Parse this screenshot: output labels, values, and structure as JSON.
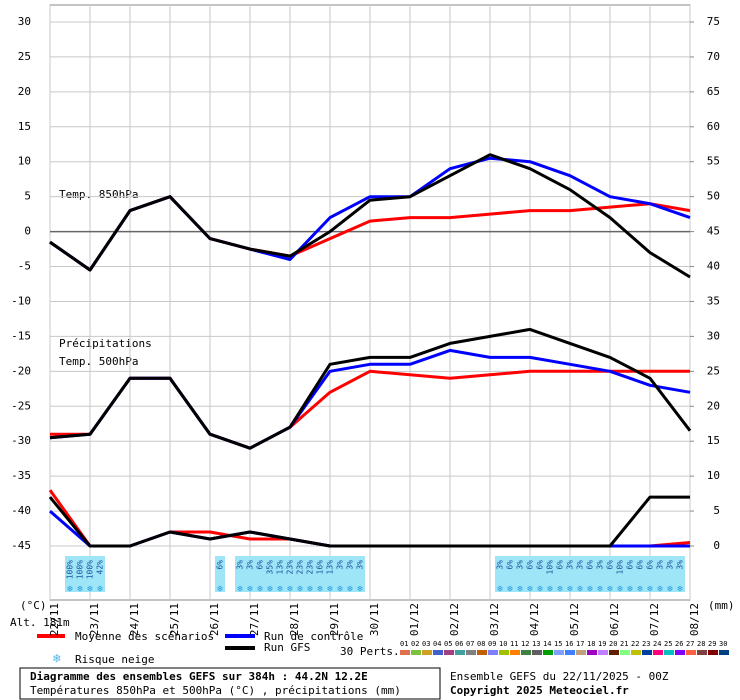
{
  "chart_data": {
    "type": "line",
    "annotations": [
      "Temp. 850hPa",
      "Précipitations",
      "Temp. 500hPa"
    ],
    "ylabel": "(°C)",
    "y2label": "(mm)",
    "altitude": "Alt. 181m",
    "x": [
      0,
      24,
      48,
      72,
      96,
      120,
      144,
      168,
      192,
      216,
      240,
      264,
      288,
      312,
      336,
      360,
      384
    ],
    "xlim": [
      0,
      384
    ],
    "xticks": [
      {
        "value": 0,
        "label": "22/11"
      },
      {
        "value": 24,
        "label": "23/11"
      },
      {
        "value": 48,
        "label": "24/11"
      },
      {
        "value": 72,
        "label": "25/11"
      },
      {
        "value": 96,
        "label": "26/11"
      },
      {
        "value": 120,
        "label": "27/11"
      },
      {
        "value": 144,
        "label": "28/11"
      },
      {
        "value": 168,
        "label": "29/11"
      },
      {
        "value": 192,
        "label": "30/11"
      },
      {
        "value": 216,
        "label": "01/12"
      },
      {
        "value": 240,
        "label": "02/12"
      },
      {
        "value": 264,
        "label": "03/12"
      },
      {
        "value": 288,
        "label": "04/12"
      },
      {
        "value": 312,
        "label": "05/12"
      },
      {
        "value": 336,
        "label": "06/12"
      },
      {
        "value": 360,
        "label": "07/12"
      },
      {
        "value": 384,
        "label": "08/12"
      }
    ],
    "ylim": [
      -45,
      30
    ],
    "yticks": [
      30,
      25,
      20,
      15,
      10,
      5,
      0,
      -5,
      -10,
      -15,
      -20,
      -25,
      -30,
      -35,
      -40,
      -45
    ],
    "y2lim": [
      0,
      75
    ],
    "y2ticks": [
      75,
      70,
      65,
      60,
      55,
      50,
      45,
      40,
      35,
      30,
      25,
      20,
      15,
      10,
      5,
      0
    ],
    "grid": true,
    "series": [
      {
        "name": "Moyenne des scénarios",
        "color": "#ff0000",
        "values": [
          -1.5,
          -5.5,
          3,
          5,
          -1,
          -2.5,
          -3.5,
          -1,
          1.5,
          2,
          2,
          2.5,
          3,
          3,
          3.5,
          4,
          3
        ]
      },
      {
        "name": "Run de contrôle",
        "color": "#0000ff",
        "values": [
          -1.5,
          -5.5,
          3,
          5,
          -1,
          -2.5,
          -4,
          2,
          5,
          5,
          9,
          10.5,
          10,
          8,
          5,
          4,
          2
        ]
      },
      {
        "name": "Run GFS",
        "color": "#000000",
        "values": [
          -1.5,
          -5.5,
          3,
          5,
          -1,
          -2.5,
          -3.5,
          0,
          4.5,
          5,
          8,
          11,
          9,
          6,
          2,
          -3,
          -6.5
        ]
      },
      {
        "name": "Moyenne des scénarios",
        "color": "#ff0000",
        "values": [
          -29,
          -29,
          -21,
          -21,
          -29,
          -31,
          -28,
          -23,
          -20,
          -20.5,
          -21,
          -20.5,
          -20,
          -20,
          -20,
          -20,
          -20
        ]
      },
      {
        "name": "Run de contrôle",
        "color": "#0000ff",
        "values": [
          -29.5,
          -29,
          -21,
          -21,
          -29,
          -31,
          -28,
          -20,
          -19,
          -19,
          -17,
          -18,
          -18,
          -19,
          -20,
          -22,
          -23
        ]
      },
      {
        "name": "Run GFS",
        "color": "#000000",
        "values": [
          -29.5,
          -29,
          -21,
          -21,
          -29,
          -31,
          -28,
          -19,
          -18,
          -18,
          -16,
          -15,
          -14,
          -16,
          -18,
          -21,
          -28.5
        ]
      },
      {
        "name": "Moyenne des scénarios",
        "color": "#ff0000",
        "axis": "y2",
        "values": [
          8,
          0,
          0,
          2,
          2,
          1,
          1,
          0,
          0,
          0,
          0,
          0,
          0,
          0,
          0,
          0,
          0.5
        ]
      },
      {
        "name": "Run de contrôle",
        "color": "#0000ff",
        "axis": "y2",
        "values": [
          5,
          0,
          0,
          2,
          1,
          2,
          1,
          0,
          0,
          0,
          0,
          0,
          0,
          0,
          0,
          0,
          0
        ]
      },
      {
        "name": "Run GFS",
        "color": "#000000",
        "axis": "y2",
        "values": [
          7,
          0,
          0,
          2,
          1,
          2,
          1,
          0,
          0,
          0,
          0,
          0,
          0,
          0,
          0,
          7,
          7
        ]
      }
    ],
    "snow": {
      "label": "Risque neige",
      "color": "#9ee6f7",
      "x": [
        12,
        18,
        24,
        30,
        102,
        114,
        120,
        126,
        132,
        138,
        144,
        150,
        156,
        162,
        168,
        174,
        180,
        186,
        270,
        276,
        282,
        288,
        294,
        300,
        306,
        312,
        318,
        324,
        330,
        336,
        342,
        348,
        354,
        360,
        366,
        372,
        378
      ],
      "values": [
        100,
        100,
        100,
        42,
        6,
        3,
        3,
        6,
        35,
        13,
        23,
        23,
        23,
        16,
        13,
        3,
        3,
        3,
        3,
        6,
        3,
        6,
        6,
        10,
        6,
        3,
        3,
        6,
        3,
        6,
        10,
        6,
        6,
        6,
        3,
        3,
        3
      ],
      "value_labels": [
        "100%",
        "100%",
        "100%",
        "42%",
        "6%",
        "3%",
        "3%",
        "6%",
        "35%",
        "13%",
        "23%",
        "23%",
        "23%",
        "16%",
        "13%",
        "3%",
        "3%",
        "3%",
        "3%",
        "6%",
        "3%",
        "6%",
        "6%",
        "10%",
        "6%",
        "3%",
        "3%",
        "6%",
        "3%",
        "6%",
        "10%",
        "6%",
        "6%",
        "6%",
        "3%",
        "3%",
        "3%"
      ]
    },
    "perturbations": {
      "label": "30 Perts.",
      "members": [
        {
          "name": "01",
          "color": "#e07050"
        },
        {
          "name": "02",
          "color": "#80c040"
        },
        {
          "name": "03",
          "color": "#d0a020"
        },
        {
          "name": "04",
          "color": "#4060d0"
        },
        {
          "name": "05",
          "color": "#a04080"
        },
        {
          "name": "06",
          "color": "#40a0a0"
        },
        {
          "name": "07",
          "color": "#808080"
        },
        {
          "name": "08",
          "color": "#c06000"
        },
        {
          "name": "09",
          "color": "#8080ff"
        },
        {
          "name": "10",
          "color": "#a0c000"
        },
        {
          "name": "11",
          "color": "#ff8000"
        },
        {
          "name": "12",
          "color": "#408040"
        },
        {
          "name": "13",
          "color": "#606060"
        },
        {
          "name": "14",
          "color": "#00a000"
        },
        {
          "name": "15",
          "color": "#80a0ff"
        },
        {
          "name": "16",
          "color": "#4080ff"
        },
        {
          "name": "17",
          "color": "#c0a080"
        },
        {
          "name": "18",
          "color": "#a000c0"
        },
        {
          "name": "19",
          "color": "#c080ff"
        },
        {
          "name": "20",
          "color": "#602000"
        },
        {
          "name": "21",
          "color": "#80ff80"
        },
        {
          "name": "22",
          "color": "#c0c000"
        },
        {
          "name": "23",
          "color": "#0040a0"
        },
        {
          "name": "24",
          "color": "#ff0080"
        },
        {
          "name": "25",
          "color": "#00c0c0"
        },
        {
          "name": "26",
          "color": "#8000ff"
        },
        {
          "name": "27",
          "color": "#ff6040"
        },
        {
          "name": "28",
          "color": "#804040"
        },
        {
          "name": "29",
          "color": "#800000"
        },
        {
          "name": "30",
          "color": "#004080"
        }
      ]
    },
    "footer": {
      "title": "Diagramme des ensembles GEFS sur 384h : 44.2N 12.2E",
      "subtitle": "Températures 850hPa et 500hPa (°C) , précipitations (mm)",
      "run": "Ensemble GEFS du 22/11/2025 - 00Z",
      "copyright": "Copyright 2025 Meteociel.fr"
    }
  }
}
